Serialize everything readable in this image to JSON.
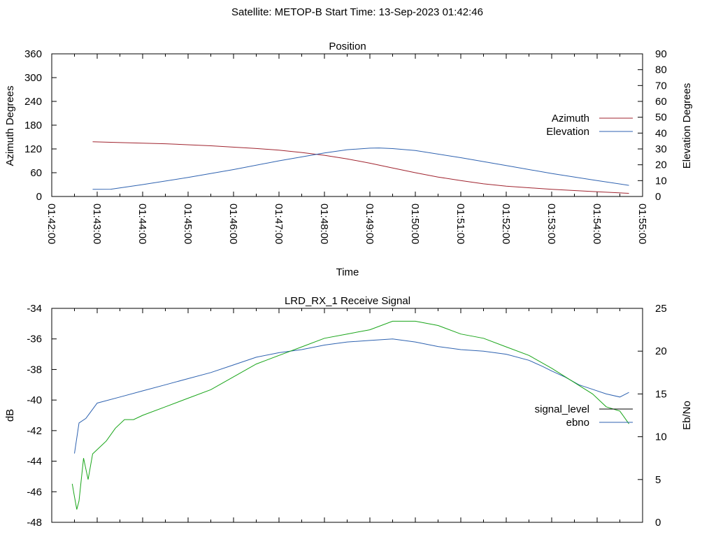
{
  "header": {
    "title": "Satellite: METOP-B    Start Time: 13-Sep-2023 01:42:46"
  },
  "chart_data": [
    {
      "type": "line",
      "title": "Position",
      "xlabel": "Time",
      "ylabel": "Azimuth Degrees",
      "y2label": "Elevation Degrees",
      "x_ticks": [
        "01:42:00",
        "01:43:00",
        "01:44:00",
        "01:45:00",
        "01:46:00",
        "01:47:00",
        "01:48:00",
        "01:49:00",
        "01:50:00",
        "01:51:00",
        "01:52:00",
        "01:53:00",
        "01:54:00",
        "01:55:00"
      ],
      "y_ticks": [
        "0",
        "60",
        "120",
        "180",
        "240",
        "300",
        "360"
      ],
      "y2_ticks": [
        "0",
        "10",
        "20",
        "30",
        "40",
        "50",
        "60",
        "70",
        "80",
        "90"
      ],
      "xlim_minutes": [
        0,
        13
      ],
      "ylim": [
        0,
        360
      ],
      "y2lim": [
        0,
        90
      ],
      "legend_position": "right",
      "grid": false,
      "series": [
        {
          "name": "Azimuth",
          "axis": "left",
          "color": "#a0242f",
          "x_minutes": [
            0.9,
            1.5,
            2.5,
            3.5,
            4.5,
            5.0,
            5.5,
            6.0,
            6.5,
            7.0,
            7.5,
            8.0,
            8.5,
            9.0,
            9.5,
            10.0,
            11.0,
            12.0,
            12.7
          ],
          "values": [
            138,
            136,
            133,
            128,
            121,
            117,
            111,
            104,
            95,
            84,
            72,
            60,
            49,
            40,
            32,
            26,
            18,
            12,
            8
          ]
        },
        {
          "name": "Elevation",
          "axis": "right",
          "color": "#2e62b0",
          "x_minutes": [
            0.9,
            1.3,
            2.0,
            3.0,
            4.0,
            5.0,
            6.0,
            6.5,
            7.0,
            7.2,
            7.5,
            8.0,
            9.0,
            10.0,
            11.0,
            12.0,
            12.7
          ],
          "values": [
            4.5,
            4.6,
            7.5,
            12,
            17,
            22.5,
            27.5,
            29.5,
            30.5,
            30.6,
            30.2,
            29,
            24.5,
            19.5,
            14.5,
            10,
            7
          ]
        }
      ]
    },
    {
      "type": "line",
      "title": "LRD_RX_1 Receive Signal",
      "ylabel": "dB",
      "y2label": "Eb/No",
      "y_ticks": [
        "-48",
        "-46",
        "-44",
        "-42",
        "-40",
        "-38",
        "-36",
        "-34"
      ],
      "y2_ticks": [
        "0",
        "5",
        "10",
        "15",
        "20",
        "25"
      ],
      "ylim": [
        -48,
        -34
      ],
      "y2lim": [
        0,
        25
      ],
      "xlim_minutes": [
        0,
        13
      ],
      "legend_position": "right",
      "grid": false,
      "series": [
        {
          "name": "signal_level",
          "axis": "left",
          "color": "#2e62b0",
          "x_minutes": [
            0.5,
            0.6,
            0.75,
            1.0,
            1.5,
            2.0,
            2.5,
            3.0,
            3.5,
            4.0,
            4.5,
            5.0,
            5.5,
            6.0,
            6.5,
            7.0,
            7.5,
            8.0,
            8.5,
            9.0,
            9.5,
            10.0,
            10.5,
            10.8,
            11.0,
            11.3,
            11.6,
            11.9,
            12.2,
            12.5,
            12.7
          ],
          "values": [
            -43.5,
            -41.5,
            -41.2,
            -40.2,
            -39.8,
            -39.4,
            -39.0,
            -38.6,
            -38.2,
            -37.7,
            -37.2,
            -36.9,
            -36.7,
            -36.4,
            -36.2,
            -36.1,
            -36.0,
            -36.2,
            -36.5,
            -36.7,
            -36.8,
            -37.0,
            -37.4,
            -37.8,
            -38.1,
            -38.5,
            -39.0,
            -39.3,
            -39.6,
            -39.8,
            -39.5
          ]
        },
        {
          "name": "ebno",
          "axis": "right",
          "color": "#19a519",
          "x_minutes": [
            0.45,
            0.5,
            0.55,
            0.6,
            0.7,
            0.8,
            0.9,
            1.0,
            1.2,
            1.4,
            1.6,
            1.8,
            2.0,
            2.5,
            3.0,
            3.5,
            4.0,
            4.5,
            5.0,
            5.5,
            6.0,
            6.5,
            7.0,
            7.5,
            8.0,
            8.5,
            9.0,
            9.5,
            10.0,
            10.5,
            11.0,
            11.3,
            11.6,
            11.9,
            12.2,
            12.5,
            12.7
          ],
          "values": [
            4.5,
            3,
            1.5,
            2.5,
            7.5,
            5,
            8,
            8.5,
            9.5,
            11,
            12,
            12,
            12.5,
            13.5,
            14.5,
            15.5,
            17,
            18.5,
            19.5,
            20.5,
            21.5,
            22,
            22.5,
            23.5,
            23.5,
            23,
            22,
            21.5,
            20.5,
            19.5,
            18,
            17,
            16,
            15,
            13.5,
            13,
            11.5
          ]
        }
      ]
    }
  ]
}
